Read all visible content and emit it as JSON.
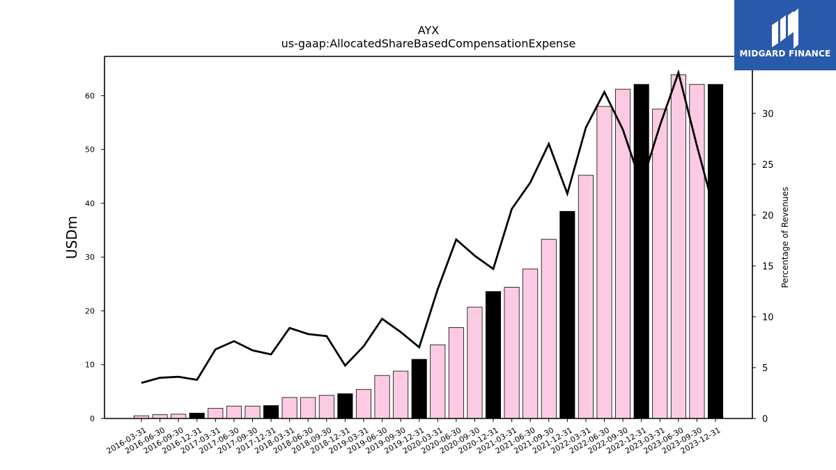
{
  "logo": {
    "text": "MIDGARD FINANCE",
    "bg_color": "#2a5aab"
  },
  "chart_data": {
    "type": "bar",
    "title": "AYX",
    "subtitle": "us-gaap:AllocatedShareBasedCompensationExpense",
    "ylabel": "USDm",
    "y2label": "Percentage of Revenues",
    "ylim": [
      0,
      67.3
    ],
    "y2lim": [
      0,
      35.6
    ],
    "yticks": [
      0,
      10,
      20,
      30,
      40,
      50,
      60
    ],
    "y2ticks": [
      0,
      5,
      10,
      15,
      20,
      25,
      30
    ],
    "grid": false,
    "bar_color": "#fccbe3",
    "bar_highlight_color": "#000000",
    "line_color": "#000000",
    "categories": [
      "2016-03-31",
      "2016-06-30",
      "2016-09-30",
      "2016-12-31",
      "2017-03-31",
      "2017-06-30",
      "2017-09-30",
      "2017-12-31",
      "2018-03-31",
      "2018-06-30",
      "2018-09-30",
      "2018-12-31",
      "2019-03-31",
      "2019-06-30",
      "2019-09-30",
      "2019-12-31",
      "2020-03-31",
      "2020-06-30",
      "2020-09-30",
      "2020-12-31",
      "2021-03-31",
      "2021-06-30",
      "2021-09-30",
      "2021-12-31",
      "2022-03-31",
      "2022-06-30",
      "2022-09-30",
      "2022-12-31",
      "2023-03-31",
      "2023-06-30",
      "2023-09-30",
      "2023-12-31"
    ],
    "series": [
      {
        "type": "bar",
        "values": [
          0.5,
          0.7,
          0.8,
          1.0,
          1.9,
          2.3,
          2.3,
          2.4,
          3.9,
          3.9,
          4.3,
          4.6,
          5.4,
          8.0,
          8.8,
          11.0,
          13.7,
          16.9,
          20.7,
          23.6,
          24.4,
          27.8,
          33.3,
          38.5,
          45.2,
          58.0,
          61.2,
          62.1,
          57.5,
          63.9,
          62.1,
          62.1
        ],
        "highlight": [
          false,
          false,
          false,
          true,
          false,
          false,
          false,
          true,
          false,
          false,
          false,
          true,
          false,
          false,
          false,
          true,
          false,
          false,
          false,
          true,
          false,
          false,
          false,
          true,
          false,
          false,
          false,
          true,
          false,
          false,
          false,
          true
        ]
      },
      {
        "type": "line",
        "axis": "right",
        "values": [
          3.5,
          4.0,
          4.1,
          3.8,
          6.8,
          7.6,
          6.7,
          6.3,
          8.9,
          8.3,
          8.1,
          5.2,
          7.1,
          9.8,
          8.5,
          7.0,
          12.7,
          17.6,
          16.0,
          14.7,
          20.6,
          23.2,
          27.0,
          22.1,
          28.6,
          32.1,
          28.4,
          23.0,
          28.8,
          34.0,
          26.8,
          20.0
        ]
      }
    ]
  }
}
